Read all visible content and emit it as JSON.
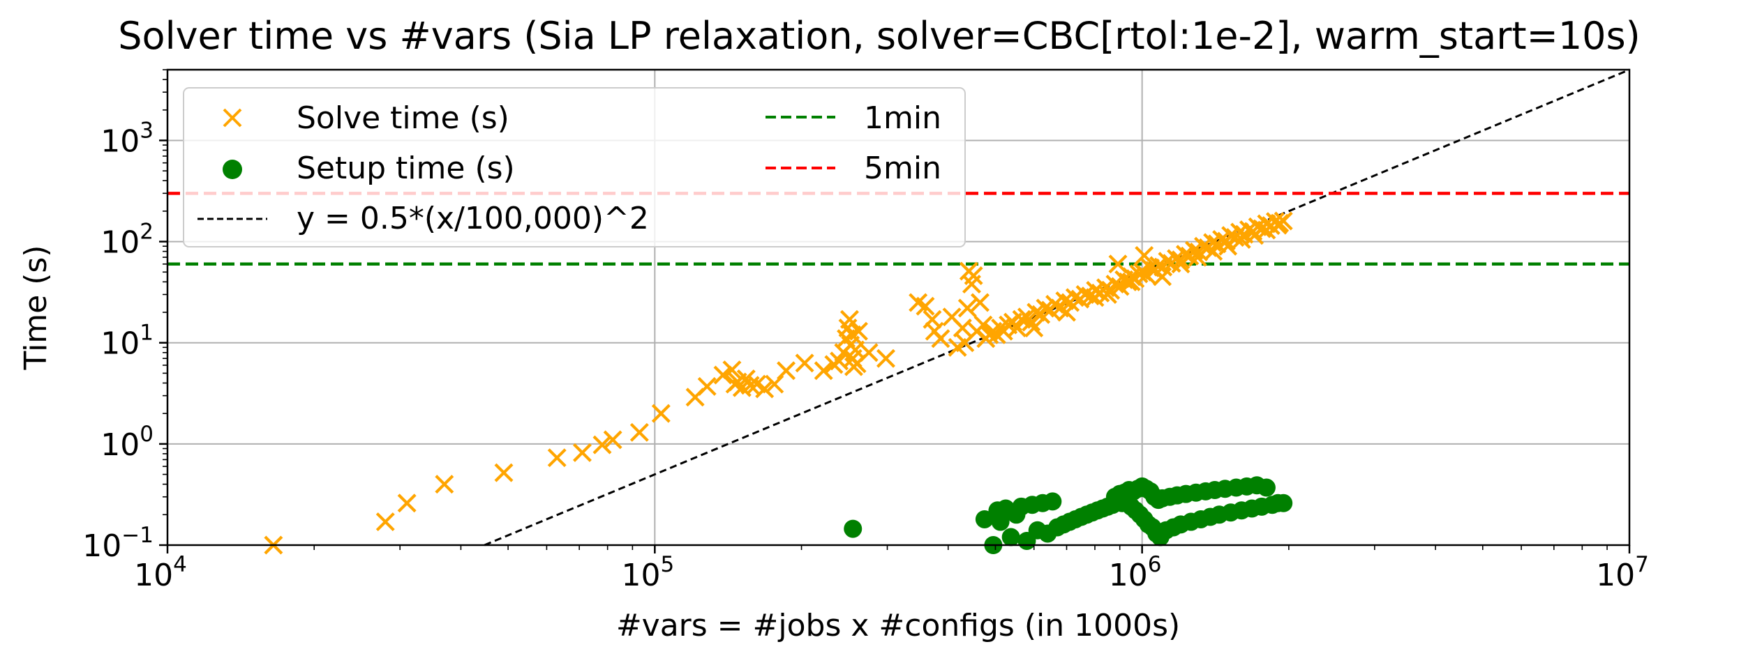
{
  "chart_data": {
    "type": "scatter",
    "title": "Solver time vs #vars (Sia LP relaxation, solver=CBC[rtol:1e-2], warm_start=10s)",
    "xlabel": "#vars = #jobs x #configs (in 1000s)",
    "ylabel": "Time (s)",
    "xscale": "log",
    "yscale": "log",
    "xlim": [
      10000,
      10000000
    ],
    "ylim": [
      0.1,
      5000
    ],
    "x_ticks": [
      {
        "value": 10000,
        "base": "10",
        "exp": "4"
      },
      {
        "value": 100000,
        "base": "10",
        "exp": "5"
      },
      {
        "value": 1000000,
        "base": "10",
        "exp": "6"
      },
      {
        "value": 10000000,
        "base": "10",
        "exp": "7"
      }
    ],
    "y_ticks": [
      {
        "value": 0.1,
        "base": "10",
        "exp": "−1"
      },
      {
        "value": 1,
        "base": "10",
        "exp": "0"
      },
      {
        "value": 10,
        "base": "10",
        "exp": "1"
      },
      {
        "value": 100,
        "base": "10",
        "exp": "2"
      },
      {
        "value": 1000,
        "base": "10",
        "exp": "3"
      }
    ],
    "grid": true,
    "legend_position": "top-left",
    "series": [
      {
        "name": "Solve time (s)",
        "marker": "x",
        "color": "#ffa500",
        "points": [
          [
            16500,
            0.1
          ],
          [
            28000,
            0.17
          ],
          [
            31000,
            0.26
          ],
          [
            37000,
            0.4
          ],
          [
            49000,
            0.52
          ],
          [
            63000,
            0.73
          ],
          [
            71000,
            0.82
          ],
          [
            78000,
            0.98
          ],
          [
            82000,
            1.1
          ],
          [
            93000,
            1.3
          ],
          [
            103000,
            2.0
          ],
          [
            121000,
            2.9
          ],
          [
            128000,
            3.7
          ],
          [
            138000,
            4.8
          ],
          [
            144000,
            5.4
          ],
          [
            146000,
            3.9
          ],
          [
            148000,
            4.1
          ],
          [
            151000,
            3.6
          ],
          [
            154000,
            4.4
          ],
          [
            157000,
            3.8
          ],
          [
            162000,
            3.9
          ],
          [
            168000,
            3.5
          ],
          [
            176000,
            3.9
          ],
          [
            186000,
            5.3
          ],
          [
            203000,
            6.3
          ],
          [
            222000,
            5.3
          ],
          [
            233000,
            6.1
          ],
          [
            239000,
            6.6
          ],
          [
            244000,
            8.0
          ],
          [
            247000,
            11
          ],
          [
            249000,
            14
          ],
          [
            251000,
            17
          ],
          [
            252000,
            9.5
          ],
          [
            254000,
            12
          ],
          [
            255000,
            7.0
          ],
          [
            256000,
            5.8
          ],
          [
            258000,
            8.5
          ],
          [
            260000,
            6.2
          ],
          [
            262000,
            13
          ],
          [
            275000,
            8.0
          ],
          [
            298000,
            7.0
          ],
          [
            347000,
            25
          ],
          [
            359000,
            23
          ],
          [
            371000,
            17
          ],
          [
            375000,
            13
          ],
          [
            386000,
            11
          ],
          [
            407000,
            18
          ],
          [
            418000,
            9.0
          ],
          [
            428000,
            14
          ],
          [
            433000,
            10
          ],
          [
            438000,
            22
          ],
          [
            441000,
            51
          ],
          [
            447000,
            38
          ],
          [
            451000,
            46
          ],
          [
            458000,
            13
          ],
          [
            465000,
            25
          ],
          [
            472000,
            15
          ],
          [
            478000,
            11
          ],
          [
            486000,
            12
          ],
          [
            494000,
            13
          ],
          [
            503000,
            12
          ],
          [
            512000,
            14
          ],
          [
            520000,
            13
          ],
          [
            531000,
            15
          ],
          [
            543000,
            16
          ],
          [
            554000,
            14
          ],
          [
            566000,
            17
          ],
          [
            580000,
            18
          ],
          [
            592000,
            16
          ],
          [
            606000,
            20
          ],
          [
            620000,
            19
          ],
          [
            633000,
            22
          ],
          [
            648000,
            21
          ],
          [
            662000,
            24
          ],
          [
            678000,
            22
          ],
          [
            694000,
            26
          ],
          [
            712000,
            25
          ],
          [
            728000,
            28
          ],
          [
            746000,
            27
          ],
          [
            764000,
            30
          ],
          [
            783000,
            29
          ],
          [
            802000,
            33
          ],
          [
            821000,
            31
          ],
          [
            842000,
            35
          ],
          [
            862000,
            33
          ],
          [
            880000,
            38
          ],
          [
            892000,
            60
          ],
          [
            901000,
            36
          ],
          [
            918000,
            42
          ],
          [
            935000,
            40
          ],
          [
            952000,
            45
          ],
          [
            968000,
            43
          ],
          [
            985000,
            48
          ],
          [
            1002000,
            50
          ],
          [
            1010000,
            73
          ],
          [
            1020000,
            47
          ],
          [
            1040000,
            55
          ],
          [
            1060000,
            52
          ],
          [
            1082000,
            58
          ],
          [
            1104000,
            56
          ],
          [
            1127000,
            64
          ],
          [
            1150000,
            61
          ],
          [
            1175000,
            68
          ],
          [
            1200000,
            66
          ],
          [
            1226000,
            75
          ],
          [
            1252000,
            72
          ],
          [
            1280000,
            82
          ],
          [
            1307000,
            79
          ],
          [
            1336000,
            90
          ],
          [
            1365000,
            87
          ],
          [
            1395000,
            98
          ],
          [
            1425000,
            95
          ],
          [
            1456000,
            105
          ],
          [
            1488000,
            101
          ],
          [
            1520000,
            115
          ],
          [
            1552000,
            110
          ],
          [
            1586000,
            124
          ],
          [
            1620000,
            118
          ],
          [
            1655000,
            131
          ],
          [
            1690000,
            126
          ],
          [
            1726000,
            140
          ],
          [
            1762000,
            134
          ],
          [
            1800000,
            150
          ],
          [
            1838000,
            144
          ],
          [
            1876000,
            158
          ],
          [
            1915000,
            152
          ],
          [
            1950000,
            160
          ],
          [
            600000,
            14
          ],
          [
            700000,
            20
          ],
          [
            800000,
            28
          ],
          [
            850000,
            30
          ],
          [
            950000,
            40
          ],
          [
            1100000,
            45
          ],
          [
            1200000,
            60
          ],
          [
            1300000,
            70
          ],
          [
            1400000,
            80
          ],
          [
            1500000,
            90
          ],
          [
            1600000,
            105
          ],
          [
            1700000,
            115
          ],
          [
            1800000,
            130
          ],
          [
            1900000,
            145
          ]
        ]
      },
      {
        "name": "Setup time (s)",
        "marker": "o",
        "color": "#008000",
        "points": [
          [
            255000,
            0.145
          ],
          [
            475000,
            0.18
          ],
          [
            495000,
            0.1
          ],
          [
            505000,
            0.22
          ],
          [
            512000,
            0.17
          ],
          [
            525000,
            0.23
          ],
          [
            538000,
            0.12
          ],
          [
            552000,
            0.2
          ],
          [
            565000,
            0.24
          ],
          [
            580000,
            0.11
          ],
          [
            595000,
            0.25
          ],
          [
            610000,
            0.14
          ],
          [
            625000,
            0.26
          ],
          [
            640000,
            0.13
          ],
          [
            655000,
            0.27
          ],
          [
            670000,
            0.15
          ],
          [
            690000,
            0.16
          ],
          [
            710000,
            0.17
          ],
          [
            730000,
            0.18
          ],
          [
            750000,
            0.19
          ],
          [
            770000,
            0.2
          ],
          [
            790000,
            0.21
          ],
          [
            810000,
            0.22
          ],
          [
            830000,
            0.23
          ],
          [
            850000,
            0.24
          ],
          [
            870000,
            0.25
          ],
          [
            880000,
            0.3
          ],
          [
            890000,
            0.28
          ],
          [
            900000,
            0.32
          ],
          [
            910000,
            0.26
          ],
          [
            920000,
            0.33
          ],
          [
            930000,
            0.29
          ],
          [
            940000,
            0.35
          ],
          [
            950000,
            0.24
          ],
          [
            960000,
            0.34
          ],
          [
            970000,
            0.22
          ],
          [
            980000,
            0.36
          ],
          [
            990000,
            0.2
          ],
          [
            1000000,
            0.38
          ],
          [
            1010000,
            0.18
          ],
          [
            1020000,
            0.36
          ],
          [
            1030000,
            0.16
          ],
          [
            1040000,
            0.34
          ],
          [
            1050000,
            0.15
          ],
          [
            1060000,
            0.3
          ],
          [
            1070000,
            0.13
          ],
          [
            1080000,
            0.28
          ],
          [
            1090000,
            0.12
          ],
          [
            1100000,
            0.29
          ],
          [
            1120000,
            0.14
          ],
          [
            1140000,
            0.3
          ],
          [
            1160000,
            0.15
          ],
          [
            1180000,
            0.31
          ],
          [
            1200000,
            0.16
          ],
          [
            1230000,
            0.32
          ],
          [
            1260000,
            0.17
          ],
          [
            1290000,
            0.33
          ],
          [
            1320000,
            0.18
          ],
          [
            1350000,
            0.34
          ],
          [
            1380000,
            0.19
          ],
          [
            1410000,
            0.35
          ],
          [
            1440000,
            0.2
          ],
          [
            1480000,
            0.36
          ],
          [
            1520000,
            0.21
          ],
          [
            1560000,
            0.37
          ],
          [
            1600000,
            0.22
          ],
          [
            1640000,
            0.38
          ],
          [
            1680000,
            0.23
          ],
          [
            1720000,
            0.39
          ],
          [
            1760000,
            0.24
          ],
          [
            1800000,
            0.37
          ],
          [
            1850000,
            0.25
          ],
          [
            1900000,
            0.26
          ],
          [
            1950000,
            0.26
          ]
        ]
      }
    ],
    "reference_lines": [
      {
        "name": "y = 0.5*(x/100,000)^2",
        "type": "curve",
        "coef": 0.5,
        "scale": 100000,
        "power": 2,
        "color": "#000000",
        "style": "dashed"
      },
      {
        "name": "1min",
        "type": "hline",
        "y": 60,
        "color": "#008000",
        "style": "dashed"
      },
      {
        "name": "5min",
        "type": "hline",
        "y": 300,
        "color": "#ff0000",
        "style": "dashed"
      }
    ],
    "legend": [
      {
        "label": "Solve time (s)"
      },
      {
        "label": "Setup time (s)"
      },
      {
        "label": "y = 0.5*(x/100,000)^2"
      },
      {
        "label": "1min"
      },
      {
        "label": "5min"
      }
    ]
  }
}
